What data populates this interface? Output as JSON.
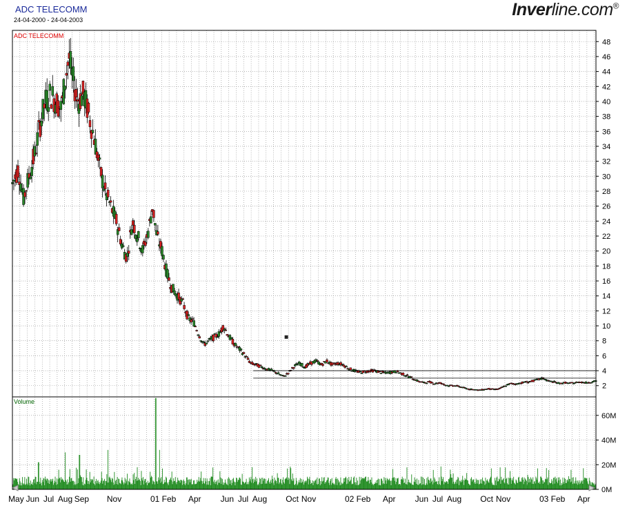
{
  "header": {
    "title": "ADC TELECOMM",
    "date_range": "24-04-2000 - 24-04-2003",
    "brand_bold": "Inver",
    "brand_rest": "line.com",
    "brand_mark": "®"
  },
  "colors": {
    "up_candle": "#2a8a2a",
    "down_candle": "#dd2222",
    "volume_bars": "#1e8a1e",
    "price_label": "#dd0000",
    "volume_label": "#006400",
    "grid": "#888888"
  },
  "chart_data": [
    {
      "type": "candlestick",
      "title": "ADC TELECOMM",
      "series_label": "ADC TELECOMM",
      "y_ticks": [
        2,
        4,
        6,
        8,
        10,
        12,
        14,
        16,
        18,
        20,
        22,
        24,
        26,
        28,
        30,
        32,
        34,
        36,
        38,
        40,
        42,
        44,
        46,
        48
      ],
      "ylim": [
        0.5,
        49.5
      ],
      "grid": true,
      "x_range": [
        "24-04-2000",
        "24-04-2003"
      ],
      "x_tick_labels": [
        {
          "label": "May",
          "date": "2000-05-01"
        },
        {
          "label": "Jun",
          "date": "2000-06-01"
        },
        {
          "label": "Jul",
          "date": "2000-07-01"
        },
        {
          "label": "Aug",
          "date": "2000-08-01"
        },
        {
          "label": "Sep",
          "date": "2000-09-01"
        },
        {
          "label": "Nov",
          "date": "2000-11-01"
        },
        {
          "label": "01 Feb",
          "date": "2001-02-01"
        },
        {
          "label": "Apr",
          "date": "2001-04-01"
        },
        {
          "label": "Jun",
          "date": "2001-06-01"
        },
        {
          "label": "Jul",
          "date": "2001-07-01"
        },
        {
          "label": "Aug",
          "date": "2001-08-01"
        },
        {
          "label": "Oct",
          "date": "2001-10-01"
        },
        {
          "label": "Nov",
          "date": "2001-11-01"
        },
        {
          "label": "02 Feb",
          "date": "2002-02-01"
        },
        {
          "label": "Apr",
          "date": "2002-04-01"
        },
        {
          "label": "Jun",
          "date": "2002-06-01"
        },
        {
          "label": "Jul",
          "date": "2002-07-01"
        },
        {
          "label": "Aug",
          "date": "2002-08-01"
        },
        {
          "label": "Oct",
          "date": "2002-10-01"
        },
        {
          "label": "Nov",
          "date": "2002-11-01"
        },
        {
          "label": "03 Feb",
          "date": "2003-02-01"
        },
        {
          "label": "Apr",
          "date": "2003-04-01"
        }
      ],
      "close_path": [
        [
          "2000-04-24",
          29
        ],
        [
          "2000-05-05",
          31
        ],
        [
          "2000-05-15",
          27
        ],
        [
          "2000-05-25",
          30
        ],
        [
          "2000-06-05",
          33
        ],
        [
          "2000-06-15",
          37
        ],
        [
          "2000-06-25",
          40
        ],
        [
          "2000-07-05",
          41
        ],
        [
          "2000-07-15",
          40
        ],
        [
          "2000-07-25",
          39
        ],
        [
          "2000-08-01",
          43
        ],
        [
          "2000-08-08",
          46
        ],
        [
          "2000-08-15",
          43
        ],
        [
          "2000-08-25",
          40
        ],
        [
          "2000-09-05",
          41
        ],
        [
          "2000-09-15",
          38
        ],
        [
          "2000-09-25",
          35
        ],
        [
          "2000-10-05",
          31
        ],
        [
          "2000-10-15",
          28
        ],
        [
          "2000-10-25",
          26
        ],
        [
          "2000-11-05",
          24
        ],
        [
          "2000-11-15",
          21
        ],
        [
          "2000-11-25",
          19
        ],
        [
          "2000-12-05",
          24
        ],
        [
          "2000-12-15",
          22
        ],
        [
          "2000-12-25",
          20
        ],
        [
          "2001-01-05",
          23
        ],
        [
          "2001-01-12",
          26
        ],
        [
          "2001-01-20",
          22
        ],
        [
          "2001-01-30",
          20
        ],
        [
          "2001-02-08",
          17
        ],
        [
          "2001-02-18",
          15
        ],
        [
          "2001-02-28",
          14
        ],
        [
          "2001-03-10",
          13
        ],
        [
          "2001-03-20",
          11
        ],
        [
          "2001-03-30",
          10.5
        ],
        [
          "2001-04-08",
          9
        ],
        [
          "2001-04-18",
          7.5
        ],
        [
          "2001-04-28",
          8
        ],
        [
          "2001-05-08",
          8.5
        ],
        [
          "2001-05-18",
          9
        ],
        [
          "2001-05-25",
          10
        ],
        [
          "2001-06-05",
          8.5
        ],
        [
          "2001-06-15",
          7.5
        ],
        [
          "2001-06-25",
          6.8
        ],
        [
          "2001-07-05",
          6
        ],
        [
          "2001-07-15",
          5
        ],
        [
          "2001-07-25",
          4.8
        ],
        [
          "2001-08-05",
          4.5
        ],
        [
          "2001-08-15",
          4.2
        ],
        [
          "2001-08-25",
          4
        ],
        [
          "2001-09-05",
          3.6
        ],
        [
          "2001-09-15",
          3.2
        ],
        [
          "2001-09-25",
          3.8
        ],
        [
          "2001-10-05",
          4.6
        ],
        [
          "2001-10-15",
          5
        ],
        [
          "2001-10-25",
          4.5
        ],
        [
          "2001-11-05",
          5
        ],
        [
          "2001-11-15",
          5.3
        ],
        [
          "2001-11-25",
          4.8
        ],
        [
          "2001-12-05",
          5.3
        ],
        [
          "2001-12-15",
          4.8
        ],
        [
          "2001-12-25",
          5
        ],
        [
          "2002-01-05",
          4.8
        ],
        [
          "2002-01-15",
          4.3
        ],
        [
          "2002-01-25",
          4
        ],
        [
          "2002-02-05",
          3.8
        ],
        [
          "2002-02-15",
          3.9
        ],
        [
          "2002-02-25",
          4
        ],
        [
          "2002-03-05",
          4
        ],
        [
          "2002-03-15",
          3.8
        ],
        [
          "2002-03-25",
          3.7
        ],
        [
          "2002-04-05",
          3.8
        ],
        [
          "2002-04-15",
          3.9
        ],
        [
          "2002-04-25",
          3.6
        ],
        [
          "2002-05-05",
          3.3
        ],
        [
          "2002-05-15",
          3
        ],
        [
          "2002-05-25",
          2.6
        ],
        [
          "2002-06-05",
          2.4
        ],
        [
          "2002-06-15",
          2.5
        ],
        [
          "2002-06-25",
          2.3
        ],
        [
          "2002-07-05",
          2.4
        ],
        [
          "2002-07-15",
          2.1
        ],
        [
          "2002-07-25",
          2
        ],
        [
          "2002-08-05",
          2
        ],
        [
          "2002-08-15",
          1.8
        ],
        [
          "2002-08-25",
          1.6
        ],
        [
          "2002-09-05",
          1.5
        ],
        [
          "2002-09-15",
          1.4
        ],
        [
          "2002-09-25",
          1.5
        ],
        [
          "2002-10-05",
          1.6
        ],
        [
          "2002-10-15",
          1.5
        ],
        [
          "2002-10-25",
          1.6
        ],
        [
          "2002-11-05",
          2
        ],
        [
          "2002-11-15",
          2.3
        ],
        [
          "2002-11-25",
          2.2
        ],
        [
          "2002-12-05",
          2.4
        ],
        [
          "2002-12-15",
          2.5
        ],
        [
          "2002-12-25",
          2.6
        ],
        [
          "2003-01-05",
          2.8
        ],
        [
          "2003-01-15",
          3
        ],
        [
          "2003-01-25",
          2.6
        ],
        [
          "2003-02-05",
          2.5
        ],
        [
          "2003-02-15",
          2.3
        ],
        [
          "2003-02-25",
          2.4
        ],
        [
          "2003-03-05",
          2.3
        ],
        [
          "2003-03-15",
          2.4
        ],
        [
          "2003-03-25",
          2.5
        ],
        [
          "2003-04-05",
          2.4
        ],
        [
          "2003-04-15",
          2.5
        ],
        [
          "2003-04-24",
          2.6
        ]
      ],
      "reference_lines": [
        {
          "value": 3,
          "from": "2001-07-20",
          "to": "2003-04-24"
        },
        {
          "value": 4,
          "from": "2001-07-20",
          "to": "2003-04-24"
        }
      ],
      "isolated_points": [
        {
          "date": "2001-09-20",
          "value": 8.5
        }
      ]
    },
    {
      "type": "bar",
      "series_label": "Volume",
      "y_ticks": [
        0,
        20,
        40,
        60
      ],
      "y_tick_labels": [
        "0M",
        "20M",
        "40M",
        "60M"
      ],
      "unit": "M",
      "ylim": [
        0,
        75
      ],
      "grid": true,
      "baseline_level": 8,
      "spikes": [
        {
          "date": "2000-06-12",
          "value": 22
        },
        {
          "date": "2000-08-01",
          "value": 30
        },
        {
          "date": "2000-08-28",
          "value": 28
        },
        {
          "date": "2000-10-20",
          "value": 32
        },
        {
          "date": "2001-01-18",
          "value": 74
        },
        {
          "date": "2001-01-25",
          "value": 32
        },
        {
          "date": "2001-07-18",
          "value": 18
        },
        {
          "date": "2002-07-25",
          "value": 16
        },
        {
          "date": "2002-10-10",
          "value": 17
        },
        {
          "date": "2003-01-05",
          "value": 17
        }
      ]
    }
  ]
}
